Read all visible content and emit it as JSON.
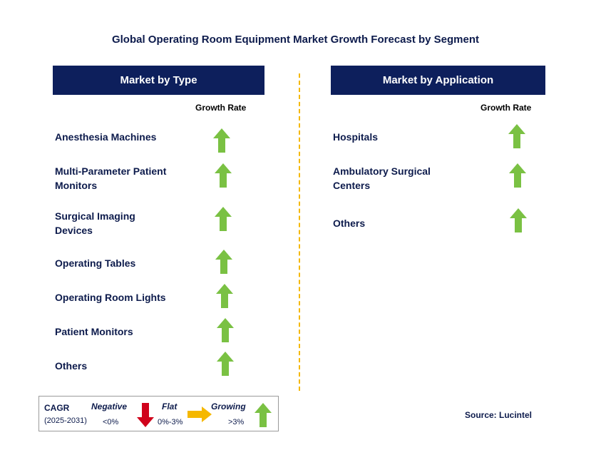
{
  "title": "Global Operating Room Equipment Market Growth Forecast by Segment",
  "type_panel": {
    "header": "Market by Type",
    "growth_label": "Growth Rate",
    "items": [
      {
        "label_lines": [
          "Anesthesia Machines"
        ],
        "trend": "growing"
      },
      {
        "label_lines": [
          "Multi-Parameter Patient",
          "Monitors"
        ],
        "trend": "growing"
      },
      {
        "label_lines": [
          "Surgical Imaging",
          "Devices"
        ],
        "trend": "growing"
      },
      {
        "label_lines": [
          "Operating Tables"
        ],
        "trend": "growing"
      },
      {
        "label_lines": [
          "Operating Room Lights"
        ],
        "trend": "growing"
      },
      {
        "label_lines": [
          "Patient Monitors"
        ],
        "trend": "growing"
      },
      {
        "label_lines": [
          "Others"
        ],
        "trend": "growing"
      }
    ]
  },
  "application_panel": {
    "header": "Market by Application",
    "growth_label": "Growth Rate",
    "items": [
      {
        "label_lines": [
          "Hospitals"
        ],
        "trend": "growing"
      },
      {
        "label_lines": [
          "Ambulatory Surgical",
          "Centers"
        ],
        "trend": "growing"
      },
      {
        "label_lines": [
          "Others"
        ],
        "trend": "growing"
      }
    ]
  },
  "legend": {
    "cagr": "CAGR",
    "period": "(2025-2031)",
    "negative": "Negative",
    "negative_range": "<0%",
    "flat": "Flat",
    "flat_range": "0%-3%",
    "growing": "Growing",
    "growing_range": ">3%"
  },
  "source": "Source: Lucintel",
  "colors": {
    "header_bg": "#0d1f5c",
    "growing_arrow": "#7ac143",
    "negative_arrow": "#d0021b",
    "flat_arrow": "#f5b800",
    "divider": "#f5b800"
  }
}
